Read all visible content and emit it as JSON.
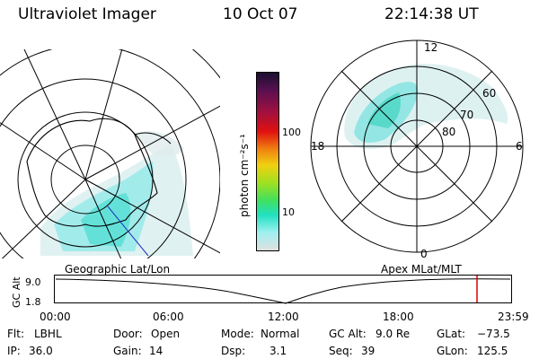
{
  "header": {
    "instrument": "Ultraviolet Imager",
    "date": "10 Oct 07",
    "time": "22:14:38 UT"
  },
  "colorbar": {
    "unit_label": "photon cm⁻²s⁻¹",
    "tick_labels": [
      "100",
      "10"
    ],
    "colors": [
      "#1a1030",
      "#5a1050",
      "#a01040",
      "#e01010",
      "#f08010",
      "#f0d010",
      "#a0e020",
      "#40e060",
      "#20e0c0",
      "#a0f0f0",
      "#e0e0e0"
    ]
  },
  "left_panel": {
    "label": "Geographic Lat/Lon"
  },
  "right_panel": {
    "label": "Apex  MLat/MLT",
    "mlt_labels": [
      "12",
      "18",
      "6",
      "0"
    ],
    "lat_labels": [
      "60",
      "70",
      "80"
    ]
  },
  "altitude_plot": {
    "ylabel": "GC Alt",
    "y_ticks": [
      "9.0",
      "1.8"
    ],
    "x_ticks": [
      "00:00",
      "06:00",
      "12:00",
      "18:00",
      "23:59"
    ],
    "marker_color": "#e00000"
  },
  "status": {
    "flt_label": "Flt:",
    "flt_value": "LBHL",
    "ip_label": "IP:",
    "ip_value": "36.0",
    "door_label": "Door:",
    "door_value": "Open",
    "gain_label": "Gain:",
    "gain_value": "14",
    "mode_label": "Mode:",
    "mode_value": "Normal",
    "dsp_label": "Dsp:",
    "dsp_value": "3.1",
    "gcalt_label": "GC Alt:",
    "gcalt_value": "9.0 Re",
    "seq_label": "Seq:",
    "seq_value": "39",
    "glat_label": "GLat:",
    "glat_value": "−73.5",
    "glon_label": "GLon:",
    "glon_value": "125.5"
  }
}
